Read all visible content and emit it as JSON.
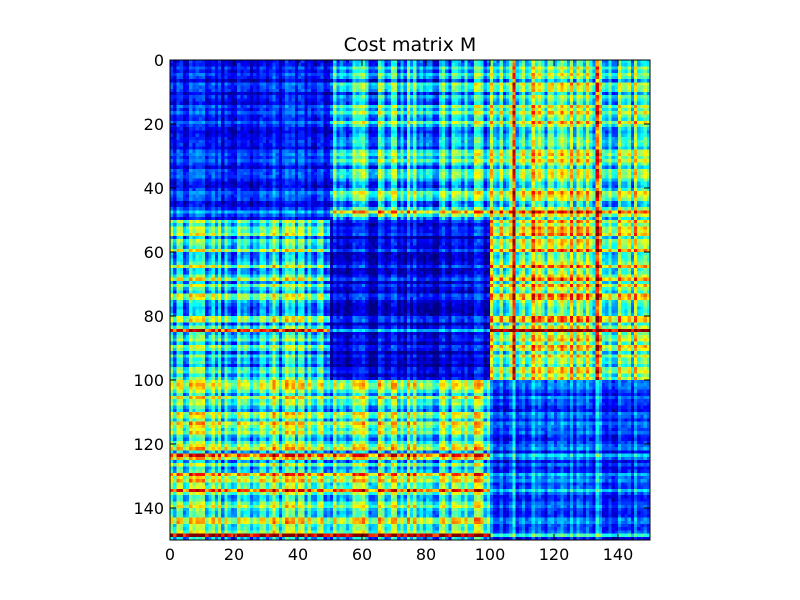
{
  "chart_data": {
    "type": "heatmap",
    "title": "Cost matrix M",
    "xlabel": "",
    "ylabel": "",
    "colormap": "jet",
    "shape": [
      150,
      150
    ],
    "xlim": [
      0,
      150
    ],
    "ylim": [
      150,
      0
    ],
    "x_ticks": [
      0,
      20,
      40,
      60,
      80,
      100,
      120,
      140
    ],
    "y_ticks": [
      0,
      20,
      40,
      60,
      80,
      100,
      120,
      140
    ],
    "x_tick_labels": [
      "0",
      "20",
      "40",
      "60",
      "80",
      "100",
      "120",
      "140"
    ],
    "y_tick_labels": [
      "0",
      "20",
      "40",
      "60",
      "80",
      "100",
      "120",
      "140"
    ],
    "block_boundaries": [
      50,
      100
    ],
    "block_mean_levels": [
      [
        0.15,
        0.35,
        0.45
      ],
      [
        0.4,
        0.12,
        0.55
      ],
      [
        0.45,
        0.45,
        0.18
      ]
    ],
    "bright_rows": [
      41,
      47,
      84,
      123,
      129,
      134,
      148
    ],
    "bright_cols": [
      107,
      113,
      125,
      133,
      134
    ]
  }
}
